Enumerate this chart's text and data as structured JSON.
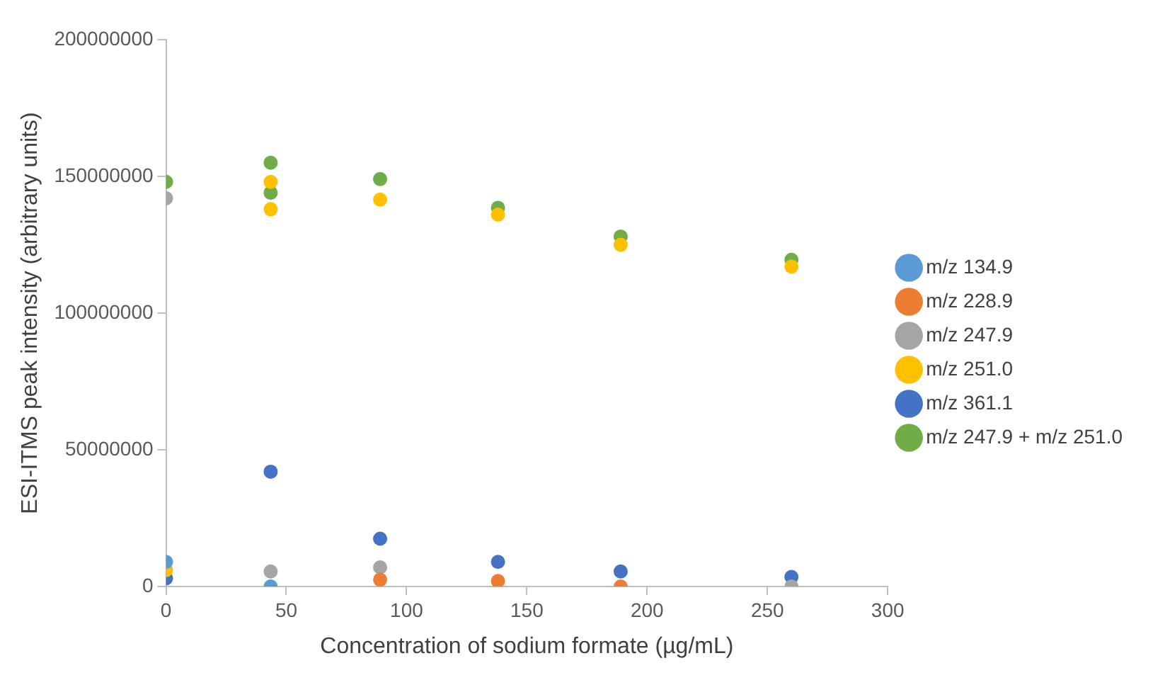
{
  "chart_data": {
    "type": "scatter",
    "xlabel": "Concentration of sodium formate (µg/mL)",
    "ylabel": "ESI-ITMS peak intensity (arbitrary units)",
    "xlim": [
      0,
      300
    ],
    "xticks": [
      0,
      50,
      100,
      150,
      200,
      250,
      300
    ],
    "ylim": [
      0,
      200000000
    ],
    "yticks": [
      0,
      50000000,
      100000000,
      150000000,
      200000000
    ],
    "grid": false,
    "legend": "right",
    "marker": "circle",
    "series": [
      {
        "name": "m/z 134.9",
        "color": "#5b9bd5",
        "x": [
          0,
          43.5
        ],
        "values": [
          9000000,
          0
        ]
      },
      {
        "name": "m/z 228.9",
        "color": "#ed7d31",
        "x": [
          89,
          138,
          189
        ],
        "values": [
          2500000,
          2000000,
          0
        ]
      },
      {
        "name": "m/z 247.9",
        "color": "#a5a5a5",
        "x": [
          0,
          43.5,
          89,
          260
        ],
        "values": [
          142000000,
          5500000,
          7000000,
          0
        ]
      },
      {
        "name": "m/z 251.0",
        "color": "#ffc000",
        "x": [
          0,
          43.5,
          43.5,
          89,
          138,
          189,
          260
        ],
        "values": [
          6000000,
          148000000,
          138000000,
          141500000,
          136000000,
          125000000,
          117000000
        ]
      },
      {
        "name": "m/z 361.1",
        "color": "#4472c4",
        "x": [
          0,
          43.5,
          89,
          138,
          189,
          260
        ],
        "values": [
          3000000,
          42000000,
          17500000,
          9000000,
          5500000,
          3500000
        ]
      },
      {
        "name": "m/z 247.9 + m/z 251.0",
        "color": "#70ad47",
        "x": [
          0,
          43.5,
          43.5,
          89,
          138,
          189,
          260
        ],
        "values": [
          148000000,
          155000000,
          144000000,
          149000000,
          138500000,
          128000000,
          119500000
        ]
      }
    ]
  }
}
